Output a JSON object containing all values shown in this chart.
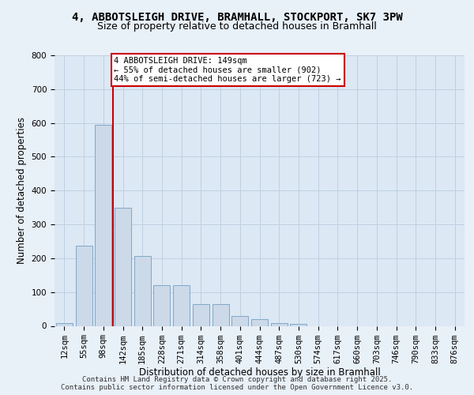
{
  "title_line1": "4, ABBOTSLEIGH DRIVE, BRAMHALL, STOCKPORT, SK7 3PW",
  "title_line2": "Size of property relative to detached houses in Bramhall",
  "xlabel": "Distribution of detached houses by size in Bramhall",
  "ylabel": "Number of detached properties",
  "categories": [
    "12sqm",
    "55sqm",
    "98sqm",
    "142sqm",
    "185sqm",
    "228sqm",
    "271sqm",
    "314sqm",
    "358sqm",
    "401sqm",
    "444sqm",
    "487sqm",
    "530sqm",
    "574sqm",
    "617sqm",
    "660sqm",
    "703sqm",
    "746sqm",
    "790sqm",
    "833sqm",
    "876sqm"
  ],
  "values": [
    8,
    238,
    595,
    350,
    207,
    120,
    120,
    65,
    65,
    30,
    20,
    8,
    5,
    0,
    0,
    0,
    0,
    0,
    0,
    0,
    0
  ],
  "bar_color": "#ccd9e8",
  "bar_edge_color": "#7fa8c8",
  "red_line_x": 2.5,
  "annotation_text": "4 ABBOTSLEIGH DRIVE: 149sqm\n← 55% of detached houses are smaller (902)\n44% of semi-detached houses are larger (723) →",
  "annotation_box_color": "#ffffff",
  "annotation_box_edge": "#cc0000",
  "red_line_color": "#cc0000",
  "grid_color": "#c0d0e0",
  "background_color": "#e8f0f8",
  "plot_bg_color": "#dce8f4",
  "footer_line1": "Contains HM Land Registry data © Crown copyright and database right 2025.",
  "footer_line2": "Contains public sector information licensed under the Open Government Licence v3.0.",
  "ylim": [
    0,
    800
  ],
  "yticks": [
    0,
    100,
    200,
    300,
    400,
    500,
    600,
    700,
    800
  ],
  "title_fontsize": 10,
  "subtitle_fontsize": 9,
  "axis_label_fontsize": 8.5,
  "tick_fontsize": 7.5,
  "footer_fontsize": 6.5
}
